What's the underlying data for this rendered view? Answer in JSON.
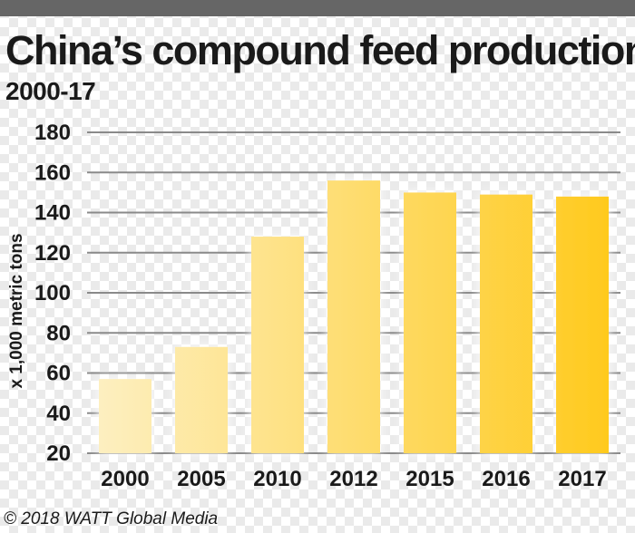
{
  "chart_data": {
    "type": "bar",
    "title": "China’s compound feed production",
    "subtitle": "2000-17",
    "xlabel": "",
    "ylabel": "x 1,000 metric tons",
    "categories": [
      "2000",
      "2005",
      "2010",
      "2012",
      "2015",
      "2016",
      "2017"
    ],
    "values": [
      57,
      73,
      128,
      156,
      150,
      149,
      148
    ],
    "ylim": [
      20,
      180
    ],
    "yticks": [
      20,
      40,
      60,
      80,
      100,
      120,
      140,
      160,
      180
    ],
    "grid": true,
    "legend": "none",
    "colors": {
      "bar_start": "#fdf0c4",
      "bar_end": "#ffc91a",
      "grid": "#8a8a8a",
      "rule": "#666666"
    }
  },
  "credit": "© 2018 WATT Global Media"
}
